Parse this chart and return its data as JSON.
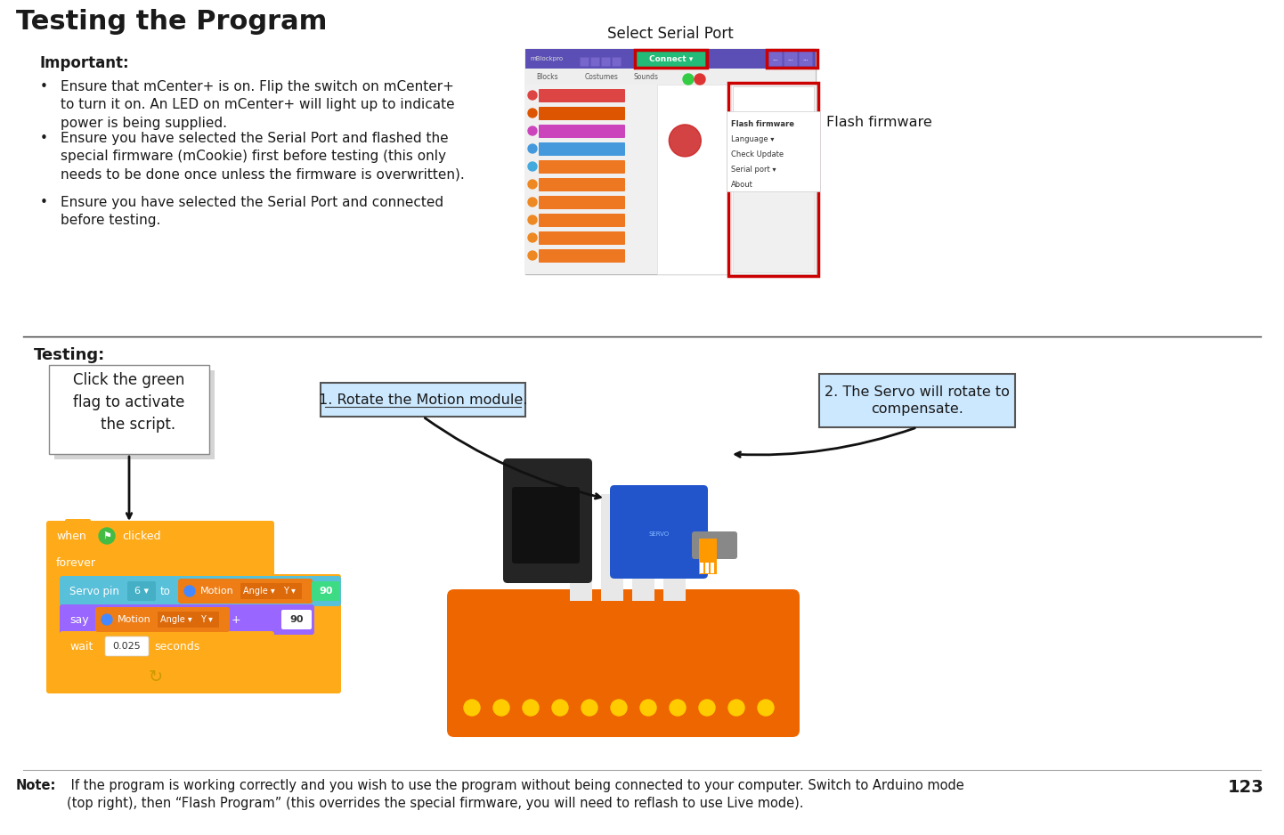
{
  "title": "Testing the Program",
  "page_number": "123",
  "bg_color": "#ffffff",
  "title_fontsize": 22,
  "important_title": "Important:",
  "important_bullets": [
    "Ensure that mCenter+ is on. Flip the switch on mCenter+\nto turn it on. An LED on mCenter+ will light up to indicate\npower is being supplied.",
    "Ensure you have selected the Serial Port and flashed the\nspecial firmware (mCookie) first before testing (this only\nneeds to be done once unless the firmware is overwritten).",
    "Ensure you have selected the Serial Port and connected\nbefore testing."
  ],
  "select_serial_port_label": "Select Serial Port",
  "flash_firmware_label": "Flash firmware",
  "testing_title": "Testing:",
  "callout1": "Click the green\nflag to activate\n    the script.",
  "step1": "1. Rotate the Motion module.",
  "step2": "2. The Servo will rotate to\ncompensate.",
  "note_bold": "Note:",
  "note_text": " If the program is working correctly and you wish to use the program without being connected to your computer. Switch to Arduino mode\n(top right), then “Flash Program” (this overrides the special firmware, you will need to reflash to use Live mode).",
  "when_clicked_color": "#ffab19",
  "forever_color": "#ffab19",
  "servo_block_color": "#59c0d9",
  "motion_block_color": "#ee7d16",
  "say_block_color": "#9966ff",
  "wait_block_color": "#ffab19",
  "green_num_color": "#3ddc84",
  "white_val_color": "#ffffff"
}
